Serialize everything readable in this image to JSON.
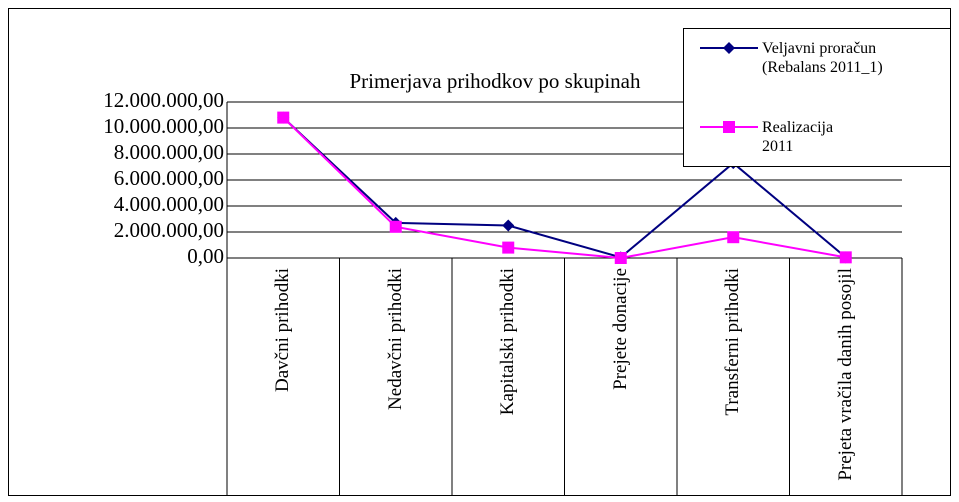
{
  "chart_data": {
    "type": "line",
    "title": "Primerjava prihodkov po skupinah",
    "categories": [
      "Davčni prihodki",
      "Nedavčni prihodki",
      "Kapitalski prihodki",
      "Prejete donacije",
      "Transferni prihodki",
      "Prejeta vračila danih posojil"
    ],
    "series": [
      {
        "name": "Veljavni proračun (Rebalans 2011_1)",
        "color": "#000080",
        "values": [
          10800000,
          2700000,
          2500000,
          50000,
          7300000,
          50000
        ]
      },
      {
        "name": "Realizacija 2011",
        "color": "#ff00ff",
        "values": [
          10800000,
          2400000,
          800000,
          0,
          1600000,
          50000
        ]
      }
    ],
    "ylim": [
      0,
      12000000
    ],
    "yticks": [
      {
        "value": 0,
        "label": "0,00"
      },
      {
        "value": 2000000,
        "label": "2.000.000,00"
      },
      {
        "value": 4000000,
        "label": "4.000.000,00"
      },
      {
        "value": 6000000,
        "label": "6.000.000,00"
      },
      {
        "value": 8000000,
        "label": "8.000.000,00"
      },
      {
        "value": 10000000,
        "label": "10.000.000,00"
      },
      {
        "value": 12000000,
        "label": "12.000.000,00"
      }
    ],
    "grid": true,
    "legend": "top-right"
  }
}
